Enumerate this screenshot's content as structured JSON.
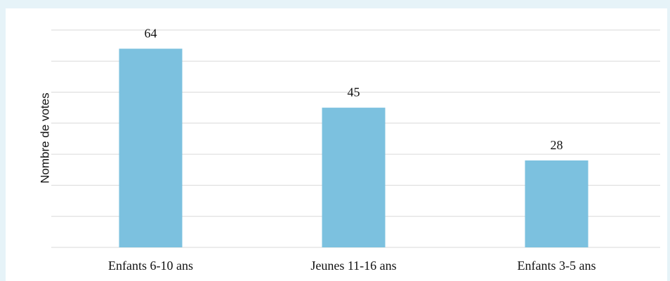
{
  "chart_data": {
    "type": "bar",
    "categories": [
      "Enfants 6-10 ans",
      "Jeunes 11-16 ans",
      "Enfants 3-5 ans"
    ],
    "values": [
      64,
      45,
      28
    ],
    "title": "",
    "xlabel": "",
    "ylabel": "Nombre de votes",
    "ylim": [
      0,
      70
    ],
    "grid": true,
    "gridline_step": 10,
    "bar_color": "#7cc1df",
    "gridline_color": "#d9d9d9",
    "data_labels": true
  }
}
